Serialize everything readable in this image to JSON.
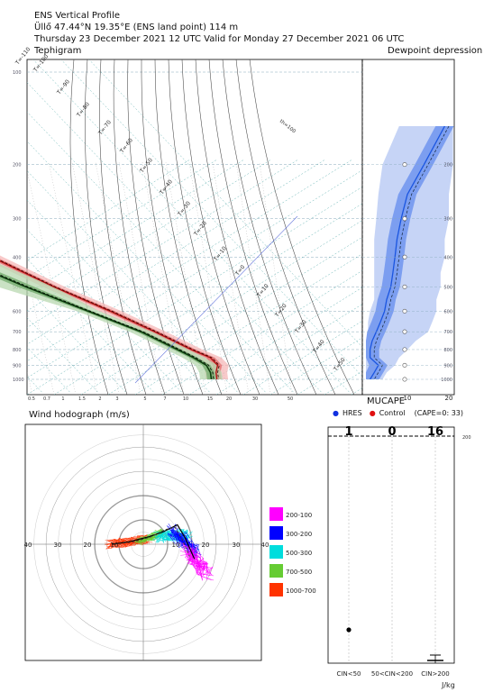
{
  "header": {
    "line1": "ENS Vertical Profile",
    "line2": "Üllő 47.44°N 19.35°E (ENS land point) 114 m",
    "line3": "Thursday 23 December 2021 12 UTC Valid for Monday 27 December 2021 06 UTC"
  },
  "panels": {
    "tephigram": "Tephigram",
    "dewpoint": "Dewpoint depression",
    "hodograph": "Wind hodograph (m/s)",
    "mucape": "MUCAPE"
  },
  "mucape_legend": {
    "hres": "HRES",
    "control": "Control",
    "cape_note": "(CAPE=0: 33)"
  },
  "colors": {
    "hres": "#1030e0",
    "control": "#e01010",
    "temp": "#e02020",
    "dew": "#207020",
    "dep": "#2060e0"
  },
  "chart_data": [
    {
      "type": "line",
      "title": "Tephigram",
      "xlabel": "",
      "ylabel": "",
      "pressure_ticks": [
        100,
        200,
        300,
        400,
        500,
        600,
        700,
        800,
        900,
        1000
      ],
      "mixing_ratio_ticks": [
        "0.5",
        "0.7",
        "1",
        "1.5",
        "2",
        "3",
        "5",
        "7",
        "10",
        "15",
        "20",
        "30",
        "50"
      ],
      "isotherm_labels": [
        "T=-110",
        "T=-100",
        "T=-90",
        "T=-80",
        "T=-70",
        "T=-60",
        "T=-50",
        "T=-40",
        "T=-30",
        "T=-20",
        "T=-10",
        "T=0",
        "T=10",
        "T=20",
        "T=30",
        "T=40",
        "T=50"
      ],
      "theta_labels": [
        "th=-70",
        "th=-60",
        "th=-50",
        "th=-40",
        "th=-30",
        "th=-20",
        "th=-10",
        "th=0",
        "th=100"
      ],
      "series": [
        {
          "name": "Temperature",
          "pressure": [
            100,
            150,
            200,
            250,
            300,
            400,
            500,
            600,
            700,
            800,
            850,
            900,
            950,
            1000
          ],
          "values": [
            -62,
            -59,
            -56,
            -55,
            -54,
            -42,
            -30,
            -18,
            -9,
            -2,
            2,
            2,
            -1,
            -3
          ]
        },
        {
          "name": "Dewpoint",
          "pressure": [
            100,
            150,
            200,
            250,
            300,
            400,
            500,
            600,
            700,
            800,
            850,
            900,
            950,
            1000
          ],
          "values": [
            -90,
            -82,
            -78,
            -76,
            -70,
            -55,
            -40,
            -26,
            -14,
            -7,
            -4,
            -2,
            -3,
            -5
          ]
        }
      ]
    },
    {
      "type": "area",
      "title": "Dewpoint depression",
      "xticks": [
        10,
        20
      ],
      "yticks": [
        200,
        300,
        400,
        500,
        600,
        700,
        800,
        900,
        1000
      ],
      "pressure": [
        150,
        200,
        250,
        300,
        350,
        400,
        450,
        500,
        550,
        600,
        650,
        700,
        750,
        800,
        850,
        900,
        950,
        1000
      ],
      "median": [
        19,
        14,
        10,
        8.5,
        7.5,
        7,
        6.5,
        6,
        5,
        4.5,
        3.5,
        2.5,
        1.5,
        1,
        1,
        3,
        2,
        1
      ],
      "outer_min": [
        8,
        4,
        3,
        2.5,
        2,
        2,
        2,
        2,
        2,
        1,
        0.5,
        0.5,
        0,
        0,
        0,
        0,
        0,
        0
      ],
      "outer_max": [
        21,
        21,
        20,
        20,
        19,
        19,
        18,
        18,
        17,
        17,
        16,
        15,
        12,
        10,
        8,
        7,
        5,
        4
      ]
    },
    {
      "type": "scatter",
      "title": "Wind hodograph (m/s)",
      "ticks": [
        "40",
        "30",
        "20",
        "10",
        "10",
        "20",
        "30",
        "40"
      ],
      "layers": [
        {
          "name": "200-100",
          "color": "#ff00ff"
        },
        {
          "name": "300-200",
          "color": "#0000ff"
        },
        {
          "name": "500-300",
          "color": "#00dddd"
        },
        {
          "name": "700-500",
          "color": "#66cc33"
        },
        {
          "name": "1000-700",
          "color": "#ff3300"
        }
      ]
    },
    {
      "type": "bar",
      "title": "MUCAPE",
      "categories": [
        "CIN<50",
        "50<CIN<200",
        "CIN>200"
      ],
      "counts": [
        "1",
        "0",
        "16"
      ],
      "ylabel": "J/kg",
      "ytick": "200"
    }
  ]
}
